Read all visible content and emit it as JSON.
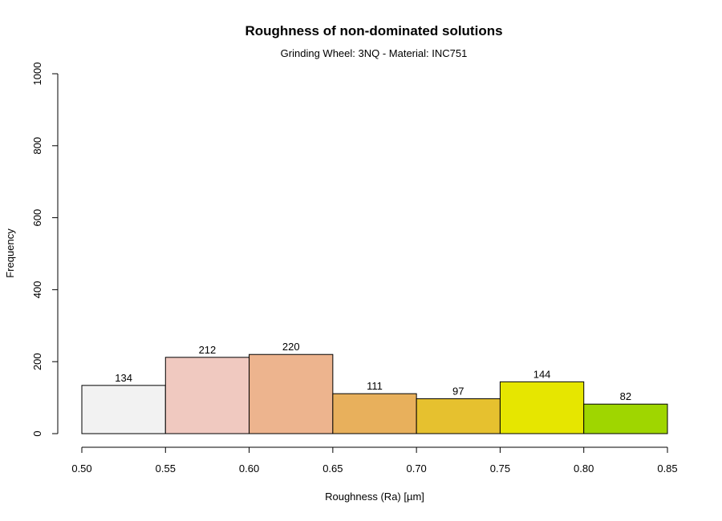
{
  "chart_data": {
    "type": "histogram",
    "title": "Roughness of non-dominated solutions",
    "subtitle": "Grinding Wheel: 3NQ - Material: INC751",
    "xlabel": "Roughness (Ra) [µm]",
    "ylabel": "Frequency",
    "xlim": [
      0.5,
      0.85
    ],
    "ylim": [
      0,
      1000
    ],
    "x_ticks": [
      "0.50",
      "0.55",
      "0.60",
      "0.65",
      "0.70",
      "0.75",
      "0.80",
      "0.85"
    ],
    "y_ticks": [
      "0",
      "200",
      "400",
      "600",
      "800",
      "1000"
    ],
    "bins": [
      {
        "from": 0.5,
        "to": 0.55,
        "value": 134,
        "label": "134",
        "color": "#f2f2f2"
      },
      {
        "from": 0.55,
        "to": 0.6,
        "value": 212,
        "label": "212",
        "color": "#f0c9c0"
      },
      {
        "from": 0.6,
        "to": 0.65,
        "value": 220,
        "label": "220",
        "color": "#edb48e"
      },
      {
        "from": 0.65,
        "to": 0.7,
        "value": 111,
        "label": "111",
        "color": "#e8b05c"
      },
      {
        "from": 0.7,
        "to": 0.75,
        "value": 97,
        "label": "97",
        "color": "#e6c12f"
      },
      {
        "from": 0.75,
        "to": 0.8,
        "value": 144,
        "label": "144",
        "color": "#e6e600"
      },
      {
        "from": 0.8,
        "to": 0.85,
        "value": 82,
        "label": "82",
        "color": "#9fd600"
      }
    ],
    "grid": false,
    "legend": "none"
  }
}
